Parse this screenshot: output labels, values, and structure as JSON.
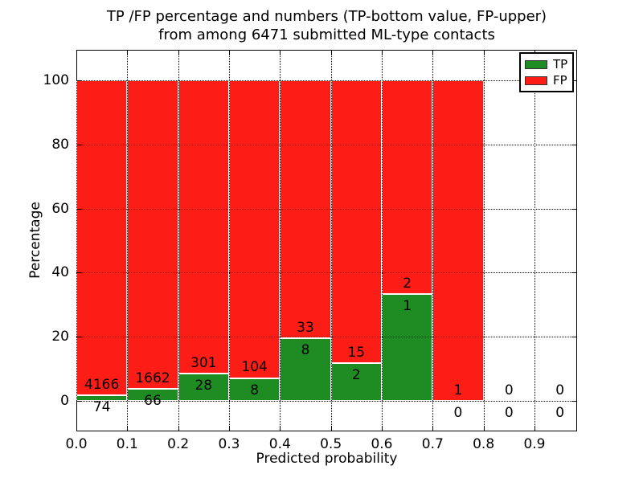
{
  "title_line1": "TP /FP percentage and numbers (TP-bottom value, FP-upper)",
  "title_line2": "from among 6471 submitted ML-type contacts",
  "colors": {
    "tp": "#1f8b23",
    "fp": "#fc1d17"
  },
  "chart_data": {
    "type": "bar",
    "stacked": true,
    "normalized_to_percent": true,
    "title": "TP /FP percentage and numbers (TP-bottom value, FP-upper) from among 6471 submitted ML-type contacts",
    "xlabel": "Predicted probability",
    "ylabel": "Percentage",
    "x_tick_labels": [
      "0.0",
      "0.1",
      "0.2",
      "0.3",
      "0.4",
      "0.5",
      "0.6",
      "0.7",
      "0.8",
      "0.9"
    ],
    "y_tick_labels": [
      "0",
      "20",
      "40",
      "60",
      "80",
      "100"
    ],
    "y_tick_values": [
      0,
      20,
      40,
      60,
      80,
      100
    ],
    "xlim": [
      0.0,
      1.0
    ],
    "ylim": [
      -10,
      110
    ],
    "grid": "dotted-on-top",
    "legend": {
      "position": "upper right",
      "entries": [
        {
          "label": "TP",
          "color": "#1f8b23"
        },
        {
          "label": "FP",
          "color": "#fc1d17"
        }
      ]
    },
    "bin_width": 0.1,
    "bins": [
      {
        "x_start": 0.0,
        "tp": 74,
        "fp": 4166,
        "tp_pct": 1.7
      },
      {
        "x_start": 0.1,
        "tp": 66,
        "fp": 1662,
        "tp_pct": 3.8
      },
      {
        "x_start": 0.2,
        "tp": 28,
        "fp": 301,
        "tp_pct": 8.5
      },
      {
        "x_start": 0.3,
        "tp": 8,
        "fp": 104,
        "tp_pct": 7.1
      },
      {
        "x_start": 0.4,
        "tp": 8,
        "fp": 33,
        "tp_pct": 19.5
      },
      {
        "x_start": 0.5,
        "tp": 2,
        "fp": 15,
        "tp_pct": 11.8
      },
      {
        "x_start": 0.6,
        "tp": 1,
        "fp": 2,
        "tp_pct": 33.3
      },
      {
        "x_start": 0.7,
        "tp": 0,
        "fp": 1,
        "tp_pct": 0
      },
      {
        "x_start": 0.8,
        "tp": 0,
        "fp": 0,
        "tp_pct": 0
      },
      {
        "x_start": 0.9,
        "tp": 0,
        "fp": 0,
        "tp_pct": 0
      }
    ]
  }
}
